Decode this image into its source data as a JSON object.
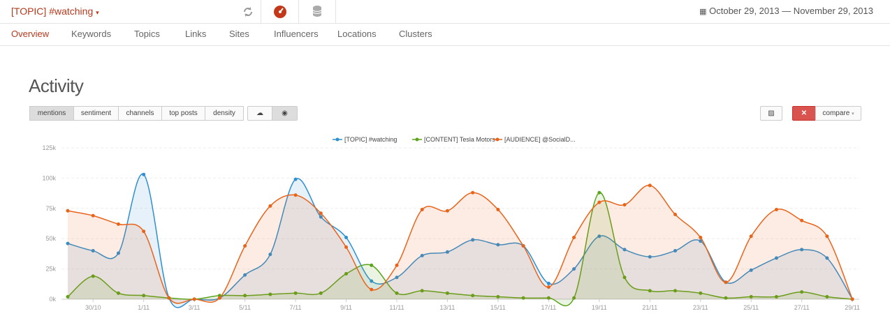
{
  "header": {
    "title": "[TOPIC] #watching",
    "date_range": "October 29, 2013 — November 29, 2013"
  },
  "nav": [
    "Overview",
    "Keywords",
    "Topics",
    "Links",
    "Sites",
    "Influencers",
    "Locations",
    "Clusters"
  ],
  "section_title": "Activity",
  "view_buttons": [
    "mentions",
    "sentiment",
    "channels",
    "top posts",
    "density"
  ],
  "compare_button": "compare",
  "chart_data": {
    "type": "line",
    "categories": [
      null,
      "30/10",
      null,
      "1/11",
      null,
      "3/11",
      null,
      "5/11",
      null,
      "7/11",
      null,
      "9/11",
      null,
      "11/11",
      null,
      "13/11",
      null,
      "15/11",
      null,
      "17/11",
      null,
      "19/11",
      null,
      "21/11",
      null,
      "23/11",
      null,
      "25/11",
      null,
      "27/11",
      null,
      "29/11"
    ],
    "series": [
      {
        "name": "[TOPIC] #watching",
        "color": "#2f8fcf",
        "values": [
          46000,
          40000,
          38000,
          103000,
          1000,
          0,
          1000,
          20000,
          37000,
          99000,
          68000,
          51000,
          15000,
          18000,
          36000,
          39000,
          49000,
          45000,
          44000,
          13000,
          25000,
          52000,
          41000,
          35000,
          40000,
          48000,
          14000,
          24000,
          34000,
          41000,
          34000,
          0
        ]
      },
      {
        "name": "[CONTENT] Tesla Motors",
        "color": "#5aa41b",
        "values": [
          2000,
          19000,
          5000,
          3000,
          1000,
          0,
          3000,
          3000,
          4000,
          5000,
          5000,
          21000,
          28000,
          5000,
          7000,
          5000,
          3000,
          2000,
          1000,
          1000,
          1000,
          88000,
          18000,
          7000,
          7000,
          5000,
          1000,
          2000,
          2000,
          6000,
          2000,
          0
        ]
      },
      {
        "name": "[AUDIENCE] @SocialD...",
        "color": "#e8641b",
        "values": [
          73000,
          69000,
          62000,
          56000,
          1000,
          0,
          1000,
          44000,
          77000,
          86000,
          71000,
          43000,
          8000,
          28000,
          74000,
          73000,
          88000,
          74000,
          44000,
          10000,
          51000,
          80000,
          78000,
          94000,
          70000,
          51000,
          14000,
          52000,
          74000,
          65000,
          52000,
          0
        ]
      }
    ],
    "ylim": [
      0,
      125000
    ],
    "yticks": [
      {
        "value": 0,
        "label": "0k"
      },
      {
        "value": 25000,
        "label": "25k"
      },
      {
        "value": 50000,
        "label": "50k"
      },
      {
        "value": 75000,
        "label": "75k"
      },
      {
        "value": 100000,
        "label": "100k"
      },
      {
        "value": 125000,
        "label": "125k"
      }
    ],
    "grid": true
  }
}
